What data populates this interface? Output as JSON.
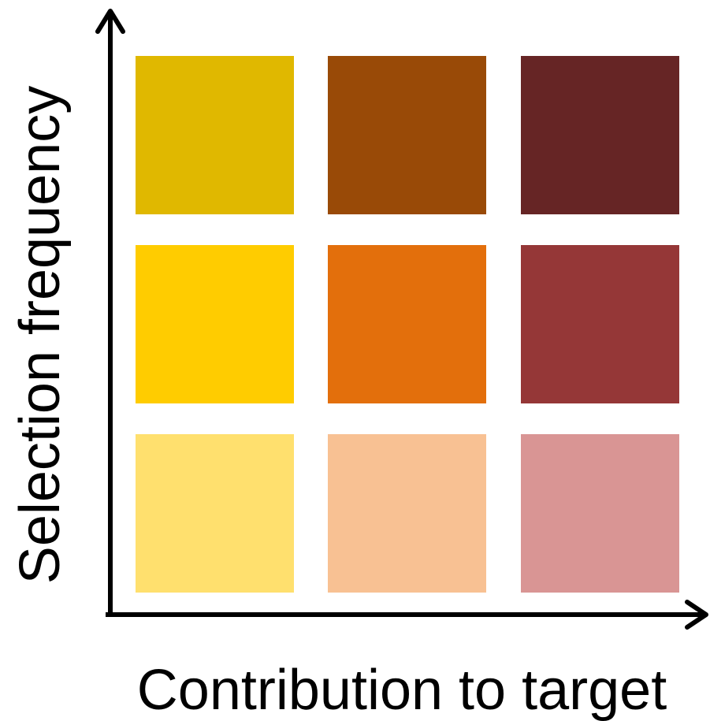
{
  "labels": {
    "y_axis": "Selection frequency",
    "x_axis": "Contribution to target"
  },
  "colors": {
    "axis": "#000000",
    "background": "#ffffff"
  },
  "grid": {
    "rows": [
      {
        "row": "top",
        "cells": [
          {
            "name": "cell-top-left",
            "color": "#E0B800"
          },
          {
            "name": "cell-top-middle",
            "color": "#994A07"
          },
          {
            "name": "cell-top-right",
            "color": "#662525"
          }
        ]
      },
      {
        "row": "middle",
        "cells": [
          {
            "name": "cell-middle-left",
            "color": "#FFCC00"
          },
          {
            "name": "cell-middle-middle",
            "color": "#E36F0C"
          },
          {
            "name": "cell-middle-right",
            "color": "#953737"
          }
        ]
      },
      {
        "row": "bottom",
        "cells": [
          {
            "name": "cell-bottom-left",
            "color": "#FFE06E"
          },
          {
            "name": "cell-bottom-middle",
            "color": "#F8C193"
          },
          {
            "name": "cell-bottom-right",
            "color": "#D99594"
          }
        ]
      }
    ]
  }
}
